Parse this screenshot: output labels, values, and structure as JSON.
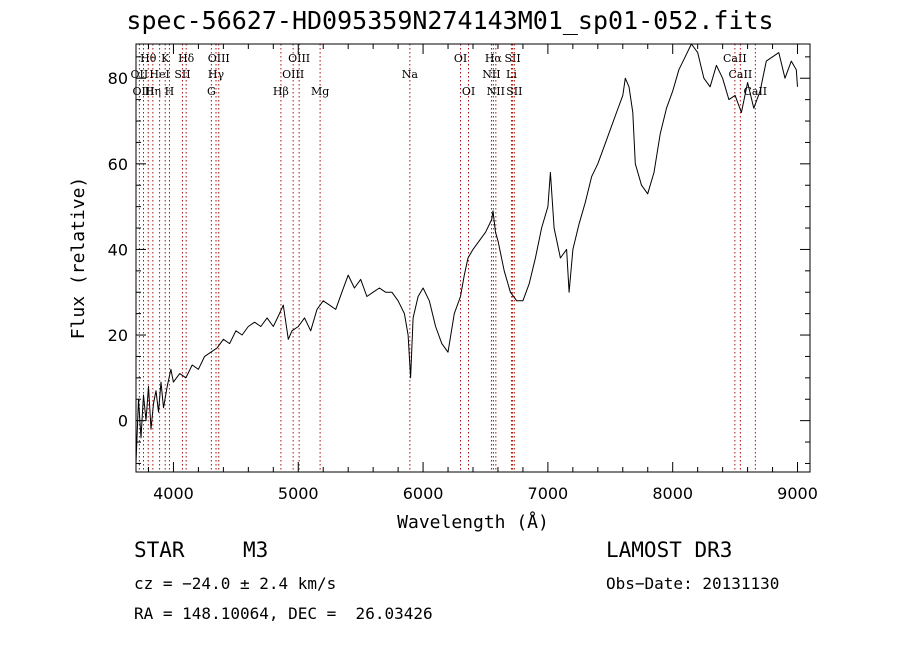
{
  "chart_data": {
    "type": "line",
    "title": "spec-56627-HD095359N274143M01_sp01-052.fits",
    "xlabel": "Wavelength (Å)",
    "ylabel": "Flux (relative)",
    "xlim": [
      3700,
      9100
    ],
    "ylim": [
      -12,
      88
    ],
    "xticks": [
      4000,
      5000,
      6000,
      7000,
      8000,
      9000
    ],
    "yticks": [
      0,
      20,
      40,
      60,
      80
    ],
    "series": [
      {
        "name": "spectrum",
        "x": [
          3700,
          3720,
          3740,
          3760,
          3780,
          3800,
          3820,
          3840,
          3860,
          3880,
          3900,
          3920,
          3950,
          3980,
          4000,
          4050,
          4100,
          4150,
          4200,
          4250,
          4300,
          4350,
          4400,
          4450,
          4500,
          4550,
          4600,
          4650,
          4700,
          4750,
          4800,
          4850,
          4880,
          4920,
          4950,
          5000,
          5050,
          5100,
          5150,
          5200,
          5250,
          5300,
          5350,
          5400,
          5450,
          5500,
          5550,
          5600,
          5650,
          5700,
          5750,
          5800,
          5850,
          5880,
          5900,
          5920,
          5960,
          6000,
          6050,
          6100,
          6150,
          6200,
          6250,
          6300,
          6330,
          6360,
          6400,
          6450,
          6500,
          6550,
          6560,
          6580,
          6600,
          6650,
          6700,
          6750,
          6800,
          6850,
          6900,
          6950,
          7000,
          7020,
          7050,
          7100,
          7150,
          7170,
          7200,
          7250,
          7300,
          7350,
          7400,
          7450,
          7500,
          7550,
          7600,
          7620,
          7650,
          7680,
          7700,
          7750,
          7800,
          7850,
          7900,
          7950,
          8000,
          8050,
          8100,
          8150,
          8200,
          8250,
          8300,
          8350,
          8400,
          8450,
          8500,
          8550,
          8600,
          8650,
          8700,
          8750,
          8800,
          8850,
          8900,
          8950,
          8990,
          9000
        ],
        "y": [
          -10,
          5,
          -4,
          6,
          0,
          8,
          -2,
          4,
          7,
          2,
          9,
          3,
          8,
          12,
          9,
          11,
          10,
          13,
          12,
          15,
          16,
          17,
          19,
          18,
          21,
          20,
          22,
          23,
          22,
          24,
          22,
          25,
          27,
          19,
          21,
          22,
          24,
          21,
          26,
          28,
          27,
          26,
          30,
          34,
          31,
          33,
          29,
          30,
          31,
          30,
          30,
          28,
          25,
          20,
          10,
          24,
          29,
          31,
          28,
          22,
          18,
          16,
          25,
          29,
          34,
          38,
          40,
          42,
          44,
          47,
          49,
          44,
          42,
          35,
          30,
          28,
          28,
          32,
          38,
          45,
          50,
          58,
          45,
          38,
          40,
          30,
          40,
          46,
          51,
          57,
          60,
          64,
          68,
          72,
          76,
          80,
          78,
          72,
          60,
          55,
          53,
          58,
          67,
          73,
          77,
          82,
          85,
          88,
          86,
          80,
          78,
          83,
          80,
          75,
          76,
          72,
          79,
          73,
          77,
          84,
          85,
          86,
          80,
          84,
          82,
          78
        ]
      }
    ],
    "lines": [
      {
        "label": "Hθ",
        "x": 3798,
        "row": 1
      },
      {
        "label": "OII",
        "x": 3727,
        "row": 2
      },
      {
        "label": "OIII",
        "x": 3760,
        "row": 3
      },
      {
        "label": "Hη",
        "x": 3835,
        "row": 3
      },
      {
        "label": "HeI",
        "x": 3889,
        "row": 2
      },
      {
        "label": "K",
        "x": 3934,
        "row": 1
      },
      {
        "label": "H",
        "x": 3968,
        "row": 3
      },
      {
        "label": "SII",
        "x": 4072,
        "row": 2
      },
      {
        "label": "Hδ",
        "x": 4102,
        "row": 1
      },
      {
        "label": "G",
        "x": 4304,
        "row": 3
      },
      {
        "label": "Hγ",
        "x": 4341,
        "row": 2
      },
      {
        "label": "OIII",
        "x": 4363,
        "row": 1
      },
      {
        "label": "Hβ",
        "x": 4861,
        "row": 3
      },
      {
        "label": "OIII",
        "x": 4959,
        "row": 2
      },
      {
        "label": "OIII",
        "x": 5007,
        "row": 1
      },
      {
        "label": "Mg",
        "x": 5175,
        "row": 3
      },
      {
        "label": "Na",
        "x": 5894,
        "row": 2
      },
      {
        "label": "OI",
        "x": 6300,
        "row": 1
      },
      {
        "label": "OI",
        "x": 6364,
        "row": 3
      },
      {
        "label": "NII",
        "x": 6548,
        "row": 2
      },
      {
        "label": "Hα",
        "x": 6563,
        "row": 1
      },
      {
        "label": "NII",
        "x": 6583,
        "row": 3
      },
      {
        "label": "Li",
        "x": 6708,
        "row": 2
      },
      {
        "label": "SII",
        "x": 6717,
        "row": 1
      },
      {
        "label": "SII",
        "x": 6731,
        "row": 3
      },
      {
        "label": "CaII",
        "x": 8498,
        "row": 1
      },
      {
        "label": "CaII",
        "x": 8542,
        "row": 2
      },
      {
        "label": "CaII",
        "x": 8662,
        "row": 3
      }
    ]
  },
  "info": {
    "class": "STAR",
    "subclass": "M3",
    "survey": "LAMOST DR3",
    "cz": "cz = −24.0 ± 2.4 km/s",
    "obs_date": "Obs−Date: 20131130",
    "coords": "RA = 148.10064, DEC =  26.03426"
  }
}
